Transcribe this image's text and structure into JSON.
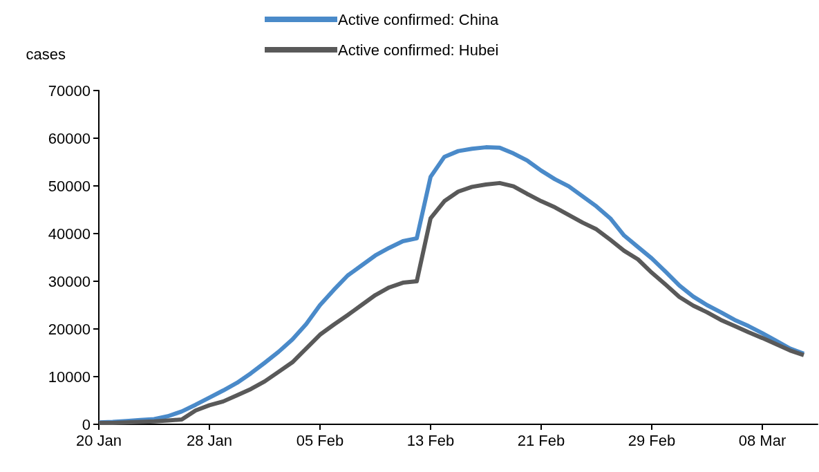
{
  "chart_data": {
    "type": "line",
    "ylabel": "cases",
    "x": [
      "--01-20",
      "--01-21",
      "--01-22",
      "--01-23",
      "--01-24",
      "--01-25",
      "--01-26",
      "--01-27",
      "--01-28",
      "--01-29",
      "--01-30",
      "--01-31",
      "--02-01",
      "--02-02",
      "--02-03",
      "--02-04",
      "--02-05",
      "--02-06",
      "--02-07",
      "--02-08",
      "--02-09",
      "--02-10",
      "--02-11",
      "--02-12",
      "--02-13",
      "--02-14",
      "--02-15",
      "--02-16",
      "--02-17",
      "--02-18",
      "--02-19",
      "--02-20",
      "--02-21",
      "--02-22",
      "--02-23",
      "--02-24",
      "--02-25",
      "--02-26",
      "--02-27",
      "--02-28",
      "--02-29",
      "--03-01",
      "--03-02",
      "--03-03",
      "--03-04",
      "--03-05",
      "--03-06",
      "--03-07",
      "--03-08",
      "--03-09",
      "--03-10",
      "--03-11"
    ],
    "series": [
      {
        "name": "Active confirmed: China",
        "color": "#4a8ac9",
        "values": [
          400,
          500,
          700,
          900,
          1100,
          1700,
          2700,
          4100,
          5600,
          7100,
          8700,
          10700,
          12900,
          15200,
          17800,
          21000,
          25000,
          28200,
          31200,
          33300,
          35400,
          37000,
          38400,
          39000,
          51900,
          56100,
          57300,
          57800,
          58100,
          58000,
          56800,
          55300,
          53200,
          51400,
          49900,
          47800,
          45700,
          43200,
          39600,
          37200,
          34800,
          32000,
          29100,
          26800,
          25000,
          23500,
          21900,
          20600,
          19100,
          17500,
          15900,
          14800
        ]
      },
      {
        "name": "Active confirmed: Hubei",
        "color": "#595959",
        "values": [
          300,
          300,
          400,
          500,
          600,
          800,
          1000,
          2900,
          4000,
          4800,
          6100,
          7400,
          9000,
          11000,
          13000,
          15900,
          18800,
          20900,
          22900,
          25000,
          27100,
          28700,
          29700,
          30000,
          43200,
          46800,
          48800,
          49800,
          50300,
          50600,
          49900,
          48300,
          46800,
          45500,
          43900,
          42300,
          40900,
          38700,
          36400,
          34600,
          31800,
          29300,
          26700,
          24900,
          23500,
          21900,
          20600,
          19300,
          18100,
          16800,
          15500,
          14500
        ]
      }
    ],
    "xlim": [
      "--01-20",
      "--03-12"
    ],
    "xticks": [
      {
        "value": "--01-20",
        "label": "20 Jan"
      },
      {
        "value": "--01-28",
        "label": "28 Jan"
      },
      {
        "value": "--02-05",
        "label": "05 Feb"
      },
      {
        "value": "--02-13",
        "label": "13 Feb"
      },
      {
        "value": "--02-21",
        "label": "21 Feb"
      },
      {
        "value": "--02-29",
        "label": "29 Feb"
      },
      {
        "value": "--03-08",
        "label": "08 Mar"
      }
    ],
    "ylim": [
      0,
      70000
    ],
    "yticks": [
      0,
      10000,
      20000,
      30000,
      40000,
      50000,
      60000,
      70000
    ],
    "grid": false,
    "legend": "top"
  }
}
